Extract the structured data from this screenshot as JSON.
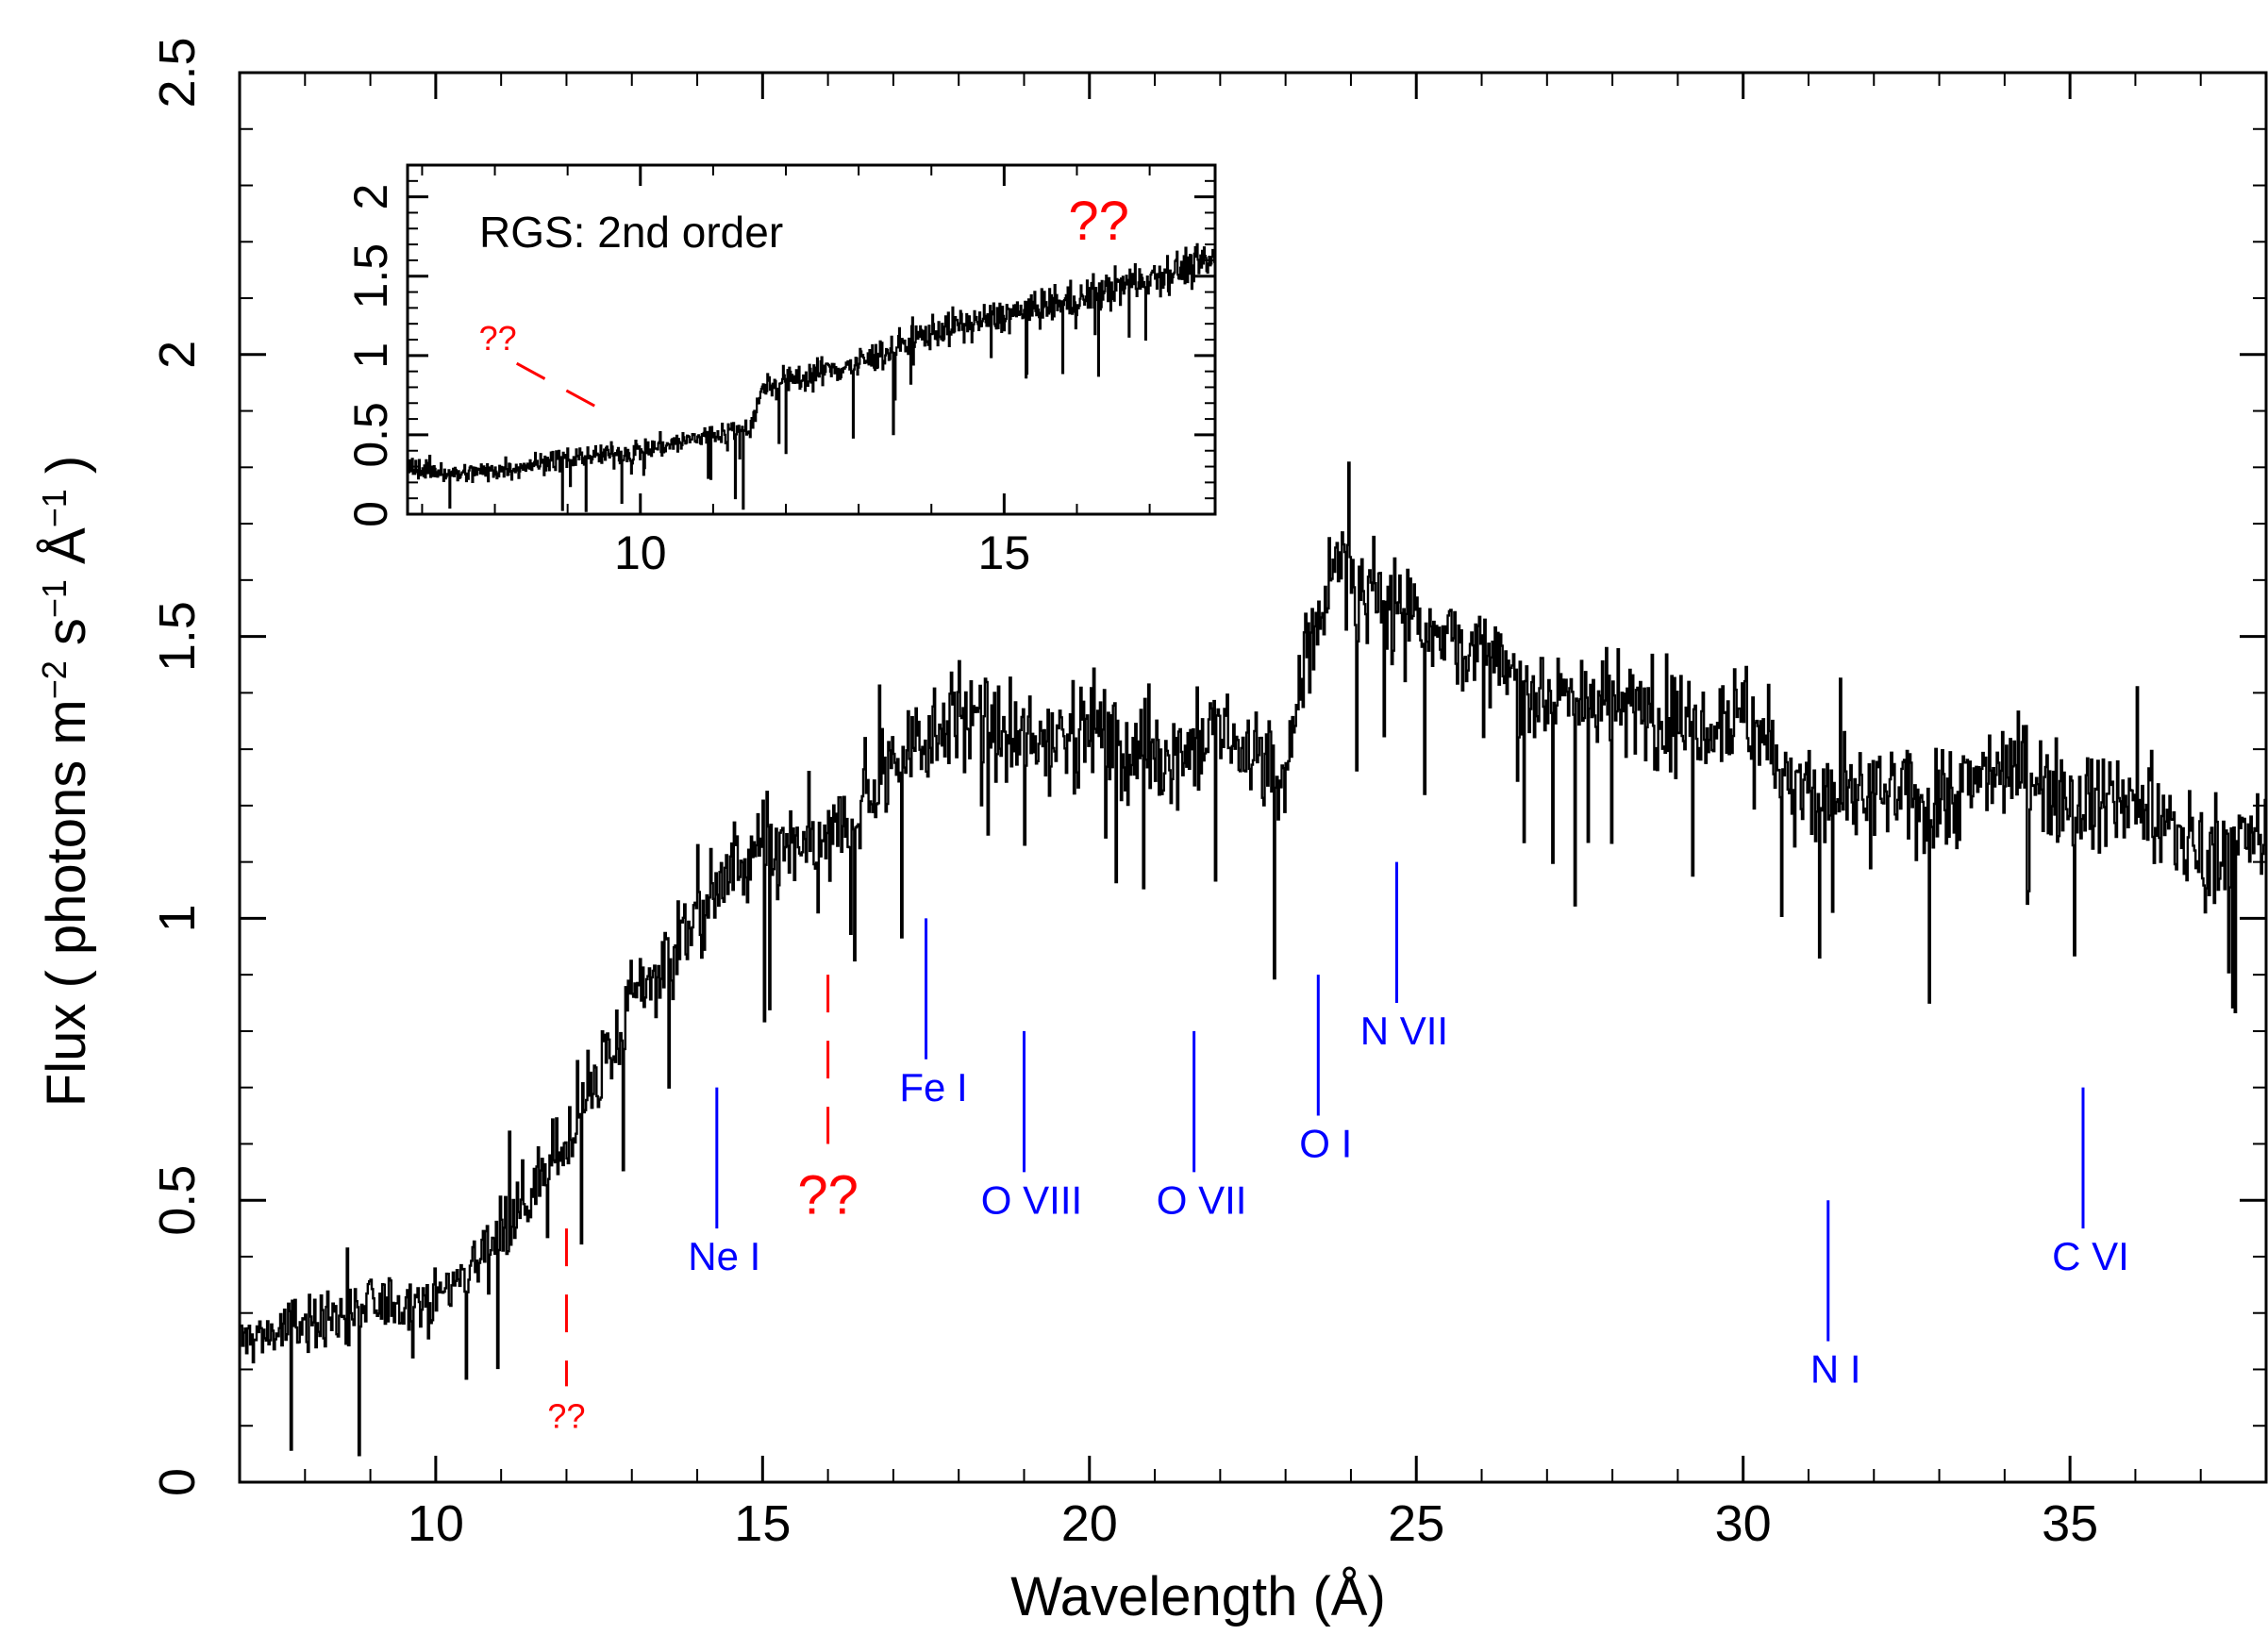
{
  "chart_data": [
    {
      "type": "line",
      "xlabel": "Wavelength (Å)",
      "ylabel_parts": {
        "base": "Flux ( photons m",
        "sup1": "−2",
        "mid": " s",
        "sup2": "−1",
        "mid2": " Å",
        "sup3": "−1",
        "end": " )"
      },
      "xlim": [
        7,
        38
      ],
      "ylim": [
        0,
        2.5
      ],
      "x_ticks": [
        10,
        15,
        20,
        25,
        30,
        35
      ],
      "x_tick_labels": [
        "10",
        "15",
        "20",
        "25",
        "30",
        "35"
      ],
      "y_ticks": [
        0,
        0.5,
        1,
        1.5,
        2,
        2.5
      ],
      "y_tick_labels": [
        "0",
        "0.5",
        "1",
        "1.5",
        "2",
        "2.5"
      ],
      "series": [
        {
          "color": "#000000",
          "anchors_x": [
            7.0,
            8.0,
            9.0,
            10.0,
            10.5,
            11.0,
            11.5,
            12.0,
            12.5,
            13.0,
            13.5,
            14.0,
            14.5,
            15.0,
            15.5,
            16.0,
            16.5,
            17.0,
            17.5,
            18.0,
            18.5,
            19.0,
            19.5,
            20.0,
            20.5,
            21.0,
            21.5,
            22.0,
            22.5,
            23.0,
            23.3,
            23.6,
            23.8,
            24.0,
            24.5,
            25.0,
            26.0,
            27.0,
            28.0,
            29.0,
            30.0,
            31.0,
            32.0,
            33.0,
            34.0,
            35.0,
            36.0,
            37.0,
            38.0
          ],
          "anchors_y": [
            0.25,
            0.28,
            0.31,
            0.33,
            0.38,
            0.45,
            0.52,
            0.6,
            0.72,
            0.85,
            0.93,
            1.0,
            1.08,
            1.12,
            1.12,
            1.13,
            1.2,
            1.28,
            1.33,
            1.37,
            1.33,
            1.3,
            1.33,
            1.35,
            1.3,
            1.28,
            1.3,
            1.32,
            1.3,
            1.23,
            1.48,
            1.55,
            1.68,
            1.58,
            1.55,
            1.55,
            1.45,
            1.4,
            1.38,
            1.35,
            1.37,
            1.2,
            1.22,
            1.2,
            1.28,
            1.22,
            1.2,
            1.12,
            1.15
          ],
          "noise": 0.07
        }
      ],
      "emission_lines": [
        {
          "label": "Ne I",
          "x": 14.3,
          "y_top": 0.7,
          "y_bottom": 0.45,
          "color": "#0000ff"
        },
        {
          "label": "Fe I",
          "x": 17.5,
          "y_top": 1.0,
          "y_bottom": 0.75,
          "color": "#0000ff"
        },
        {
          "label": "O VIII",
          "x": 19.0,
          "y_top": 0.8,
          "y_bottom": 0.55,
          "color": "#0000ff"
        },
        {
          "label": "O VII",
          "x": 21.6,
          "y_top": 0.8,
          "y_bottom": 0.55,
          "color": "#0000ff"
        },
        {
          "label": "O I",
          "x": 23.5,
          "y_top": 0.9,
          "y_bottom": 0.65,
          "color": "#0000ff"
        },
        {
          "label": "N VII",
          "x": 24.7,
          "y_top": 1.1,
          "y_bottom": 0.85,
          "color": "#0000ff"
        },
        {
          "label": "N I",
          "x": 31.3,
          "y_top": 0.5,
          "y_bottom": 0.25,
          "color": "#0000ff"
        },
        {
          "label": "C VI",
          "x": 35.2,
          "y_top": 0.7,
          "y_bottom": 0.45,
          "color": "#0000ff"
        }
      ],
      "unknown_features": [
        {
          "label": "??",
          "x": 12.0,
          "y_top": 0.45,
          "y_bottom": 0.17,
          "size": "small",
          "color": "#ff0000"
        },
        {
          "label": "??",
          "x": 16.0,
          "y_top": 0.9,
          "y_bottom": 0.6,
          "size": "big",
          "color": "#ff0000"
        }
      ]
    },
    {
      "type": "line",
      "title": "RGS: 2nd order",
      "xlim": [
        6.8,
        17.9
      ],
      "ylim": [
        0,
        2.2
      ],
      "x_ticks": [
        10,
        15
      ],
      "x_tick_labels": [
        "10",
        "15"
      ],
      "y_ticks": [
        0,
        0.5,
        1,
        1.5,
        2
      ],
      "y_tick_labels": [
        "0",
        "0.5",
        "1",
        "1.5",
        "2"
      ],
      "series": [
        {
          "color": "#000000",
          "anchors_x": [
            6.8,
            7.5,
            8.0,
            9.0,
            10.0,
            10.5,
            11.0,
            11.5,
            11.7,
            12.5,
            13.0,
            14.0,
            15.0,
            16.0,
            17.0,
            17.9
          ],
          "anchors_y": [
            0.3,
            0.25,
            0.28,
            0.35,
            0.4,
            0.45,
            0.5,
            0.55,
            0.8,
            0.9,
            0.95,
            1.15,
            1.25,
            1.35,
            1.5,
            1.6
          ],
          "noise": 0.1
        }
      ],
      "unknown_features": [
        {
          "label": "??",
          "x1": 8.3,
          "y1": 0.95,
          "x2": 9.5,
          "y2": 0.65,
          "size": "small",
          "color": "#ff0000"
        },
        {
          "label": "??",
          "x": 16.3,
          "y": 1.85,
          "size": "big",
          "color": "#ff0000"
        }
      ]
    }
  ]
}
